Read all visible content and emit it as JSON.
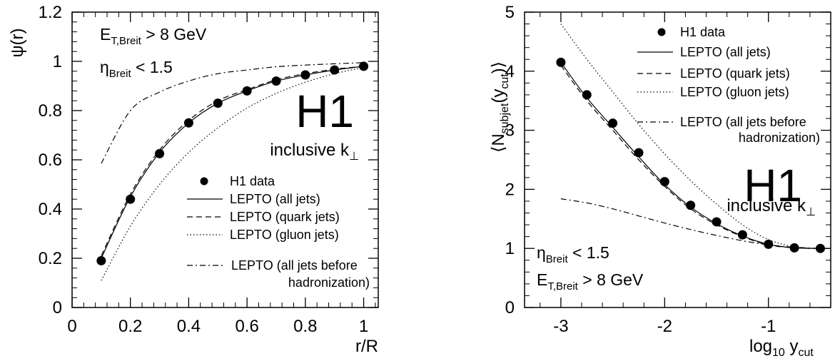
{
  "chart_data": [
    {
      "type": "line",
      "xlabel": "r/R",
      "ylabel": "ψ(r)",
      "xlim": [
        0,
        1.05
      ],
      "ylim": [
        0,
        1.2
      ],
      "xticks": [
        "0",
        "0.2",
        "0.4",
        "0.6",
        "0.8",
        "1"
      ],
      "yticks": [
        "0",
        "0.2",
        "0.4",
        "0.6",
        "0.8",
        "1",
        "1.2"
      ],
      "annotations": {
        "cut1_main": "E",
        "cut1_sub": "T,Breit",
        "cut1_rest": " > 8 GeV",
        "cut2_main": "η",
        "cut2_sub": "Breit",
        "cut2_rest": " < 1.5",
        "experiment": "H1",
        "algorithm": "inclusive k",
        "algorithm_sub": "⊥"
      },
      "legend": {
        "placement": "bottom-right",
        "entries": [
          "H1 data",
          "LEPTO (all jets)",
          "LEPTO (quark jets)",
          "LEPTO (gluon jets)",
          "LEPTO (all jets before",
          "hadronization)"
        ]
      },
      "series": [
        {
          "name": "H1 data",
          "style": "markers",
          "x": [
            0.1,
            0.2,
            0.3,
            0.4,
            0.5,
            0.6,
            0.7,
            0.8,
            0.9,
            1.0
          ],
          "y": [
            0.19,
            0.44,
            0.625,
            0.75,
            0.83,
            0.88,
            0.92,
            0.945,
            0.965,
            0.98
          ]
        },
        {
          "name": "LEPTO (all jets)",
          "style": "solid",
          "x": [
            0.1,
            0.2,
            0.3,
            0.4,
            0.5,
            0.6,
            0.7,
            0.8,
            0.9,
            1.0
          ],
          "y": [
            0.2,
            0.45,
            0.63,
            0.75,
            0.83,
            0.88,
            0.92,
            0.945,
            0.965,
            0.98
          ]
        },
        {
          "name": "LEPTO (quark jets)",
          "style": "dashed",
          "x": [
            0.1,
            0.2,
            0.3,
            0.4,
            0.5,
            0.6,
            0.7,
            0.8,
            0.9,
            1.0
          ],
          "y": [
            0.21,
            0.46,
            0.64,
            0.76,
            0.84,
            0.885,
            0.925,
            0.95,
            0.968,
            0.98
          ]
        },
        {
          "name": "LEPTO (gluon jets)",
          "style": "dotted",
          "x": [
            0.1,
            0.2,
            0.3,
            0.4,
            0.5,
            0.6,
            0.7,
            0.8,
            0.9,
            1.0
          ],
          "y": [
            0.11,
            0.33,
            0.5,
            0.63,
            0.73,
            0.81,
            0.87,
            0.915,
            0.95,
            0.975
          ]
        },
        {
          "name": "LEPTO (all jets before hadronization)",
          "style": "dashdot",
          "x": [
            0.1,
            0.2,
            0.3,
            0.4,
            0.5,
            0.6,
            0.7,
            0.8,
            0.9,
            1.0
          ],
          "y": [
            0.585,
            0.8,
            0.875,
            0.92,
            0.95,
            0.965,
            0.978,
            0.985,
            0.99,
            0.995
          ]
        }
      ]
    },
    {
      "type": "line",
      "xlabel": "log",
      "xlabel_sub": "10",
      "xlabel_rest": " y",
      "xlabel_sub2": "cut",
      "ylabel": "⟨N",
      "ylabel_sub": "subjet",
      "ylabel_rest": "(y",
      "ylabel_sub2": "cut",
      "ylabel_end": ")⟩",
      "xlim": [
        -3.35,
        -0.4
      ],
      "ylim": [
        0,
        5
      ],
      "xticks": [
        "-3",
        "-2",
        "-1"
      ],
      "yticks": [
        "0",
        "1",
        "2",
        "3",
        "4",
        "5"
      ],
      "annotations": {
        "cut1_main": "η",
        "cut1_sub": "Breit",
        "cut1_rest": " < 1.5",
        "cut2_main": "E",
        "cut2_sub": "T,Breit",
        "cut2_rest": " > 8 GeV",
        "experiment": "H1",
        "algorithm": "inclusive k",
        "algorithm_sub": "⊥"
      },
      "legend": {
        "placement": "top-right",
        "entries": [
          "H1 data",
          "LEPTO (all jets)",
          "LEPTO (quark jets)",
          "LEPTO (gluon jets)",
          "LEPTO (all jets before",
          "hadronization)"
        ]
      },
      "series": [
        {
          "name": "H1 data",
          "style": "markers",
          "x": [
            -3.0,
            -2.75,
            -2.5,
            -2.25,
            -2.0,
            -1.75,
            -1.5,
            -1.25,
            -1.0,
            -0.75,
            -0.5
          ],
          "y": [
            4.15,
            3.6,
            3.12,
            2.62,
            2.13,
            1.73,
            1.45,
            1.23,
            1.07,
            1.01,
            1.0
          ]
        },
        {
          "name": "LEPTO (all jets)",
          "style": "solid",
          "x": [
            -3.0,
            -2.75,
            -2.5,
            -2.25,
            -2.0,
            -1.75,
            -1.5,
            -1.25,
            -1.0,
            -0.75,
            -0.5,
            -0.4
          ],
          "y": [
            4.15,
            3.55,
            3.05,
            2.55,
            2.08,
            1.7,
            1.42,
            1.21,
            1.07,
            1.01,
            1.0,
            1.0
          ]
        },
        {
          "name": "LEPTO (quark jets)",
          "style": "dashed",
          "x": [
            -3.0,
            -2.75,
            -2.5,
            -2.25,
            -2.0,
            -1.75,
            -1.5,
            -1.25,
            -1.0,
            -0.75,
            -0.5,
            -0.4
          ],
          "y": [
            4.1,
            3.5,
            3.0,
            2.5,
            2.05,
            1.67,
            1.4,
            1.2,
            1.06,
            1.01,
            1.0,
            1.0
          ]
        },
        {
          "name": "LEPTO (gluon jets)",
          "style": "dotted",
          "x": [
            -3.0,
            -2.75,
            -2.5,
            -2.25,
            -2.0,
            -1.75,
            -1.5,
            -1.25,
            -1.0,
            -0.75,
            -0.5,
            -0.4
          ],
          "y": [
            4.8,
            4.2,
            3.65,
            3.1,
            2.6,
            2.15,
            1.75,
            1.4,
            1.15,
            1.03,
            1.0,
            1.0
          ]
        },
        {
          "name": "LEPTO (all jets before hadronization)",
          "style": "dashdot",
          "x": [
            -3.0,
            -2.75,
            -2.5,
            -2.25,
            -2.0,
            -1.75,
            -1.5,
            -1.25,
            -1.0,
            -0.75,
            -0.5,
            -0.4
          ],
          "y": [
            1.84,
            1.77,
            1.67,
            1.55,
            1.43,
            1.32,
            1.22,
            1.13,
            1.06,
            1.02,
            1.0,
            1.0
          ]
        }
      ]
    }
  ]
}
